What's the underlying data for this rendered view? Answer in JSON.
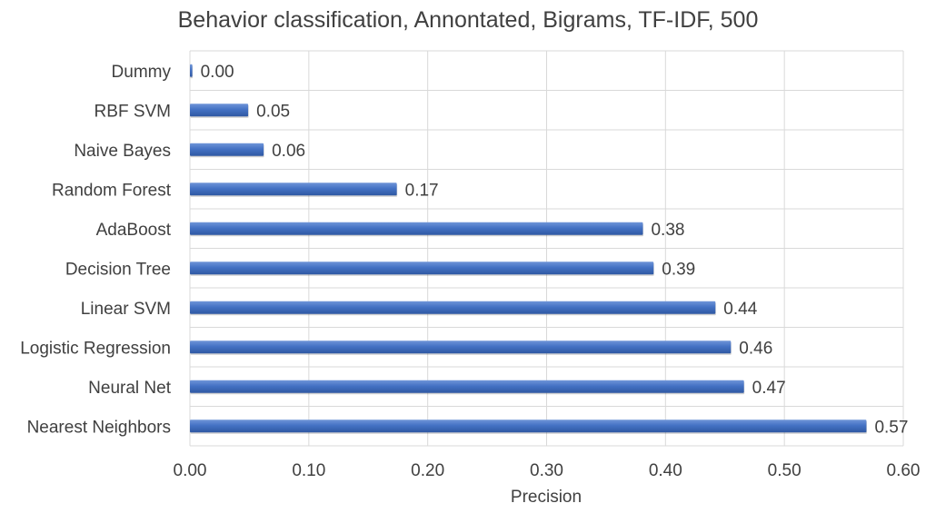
{
  "chart_data": {
    "type": "bar",
    "orientation": "horizontal",
    "title": "Behavior classification, Annontated, Bigrams, TF-IDF, 500",
    "xlabel": "Precision",
    "ylabel": "",
    "xlim": [
      0,
      0.6
    ],
    "x_ticks": [
      "0.00",
      "0.10",
      "0.20",
      "0.30",
      "0.40",
      "0.50",
      "0.60"
    ],
    "grid": true,
    "categories": [
      "Dummy",
      "RBF SVM",
      "Naive Bayes",
      "Random Forest",
      "AdaBoost",
      "Decision Tree",
      "Linear SVM",
      "Logistic Regression",
      "Neural Net",
      "Nearest Neighbors"
    ],
    "values": [
      0.002,
      0.049,
      0.062,
      0.174,
      0.381,
      0.39,
      0.442,
      0.455,
      0.466,
      0.569
    ],
    "data_labels": [
      "0.00",
      "0.05",
      "0.06",
      "0.17",
      "0.38",
      "0.39",
      "0.44",
      "0.46",
      "0.47",
      "0.57"
    ],
    "bar_color": "#4472C4",
    "grid_color": "#D9D9D9",
    "text_color": "#404040"
  }
}
